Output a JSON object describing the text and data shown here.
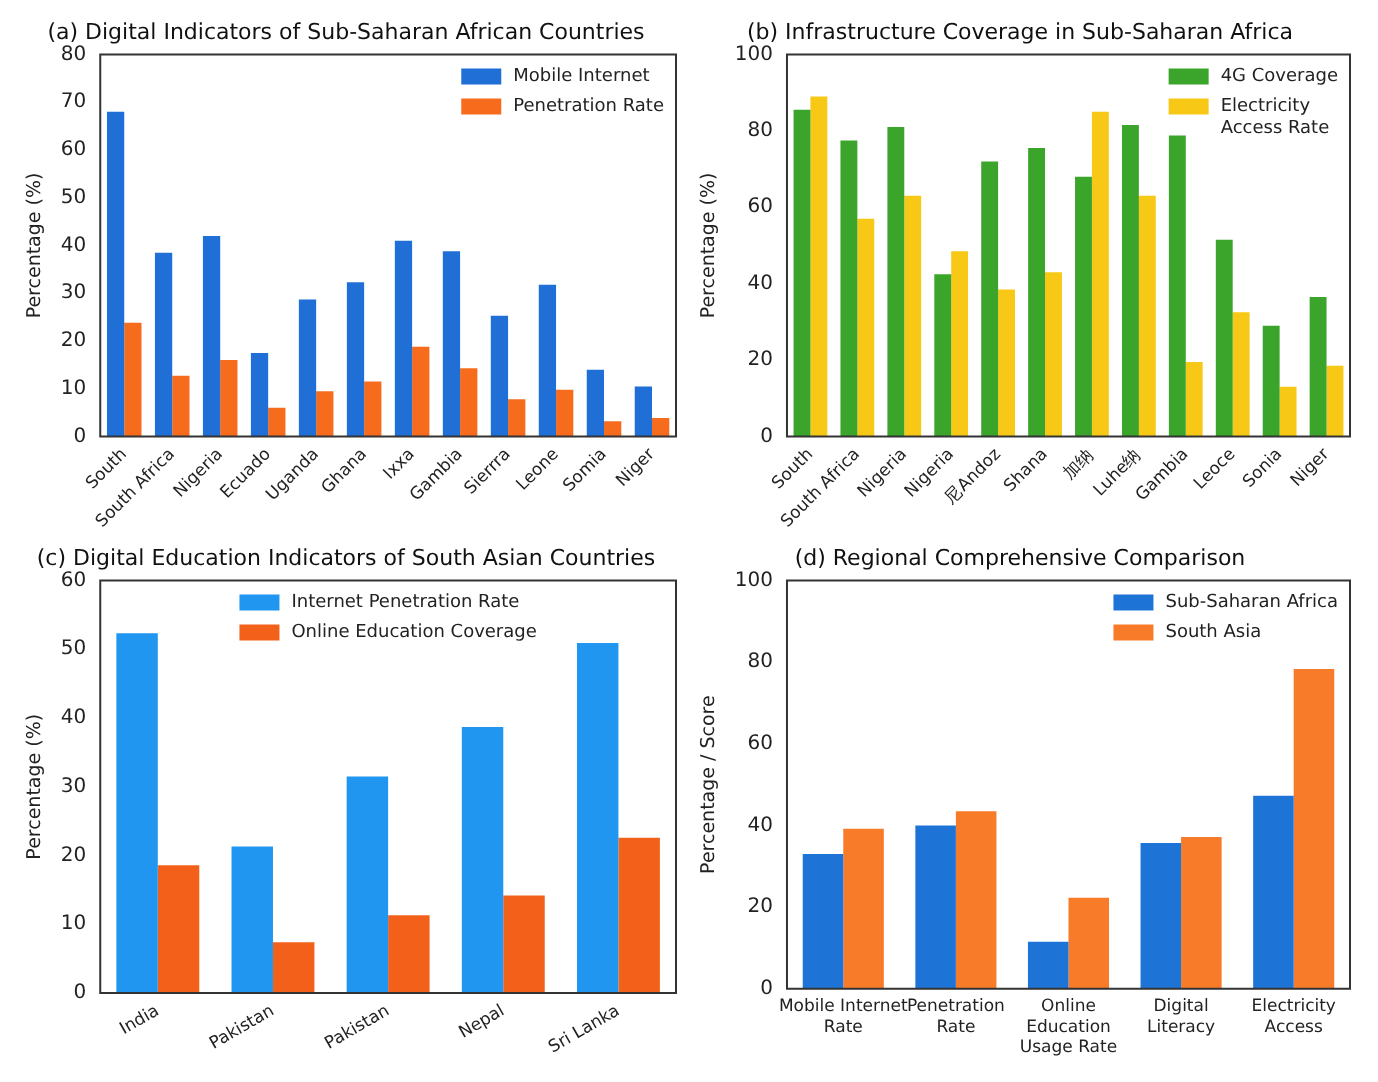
{
  "chart_data": [
    {
      "type": "bar",
      "title": "(a) Digital Indicators of Sub-Saharan African Countries",
      "ylabel": "Percentage (%)",
      "categories": [
        "South",
        "South Africa",
        "Nigeria",
        "Ecuado",
        "Uganda",
        "Ghana",
        "Ixxa",
        "Gambia",
        "Sierrra",
        "Leone",
        "Somia",
        "Niger"
      ],
      "series": [
        {
          "name": "Mobile Internet",
          "color": "#1f6fd6",
          "values": [
            68,
            38.5,
            42,
            17.5,
            28.7,
            32.3,
            41,
            38.8,
            25.3,
            31.8,
            14,
            10.5
          ]
        },
        {
          "name": "Penetration Rate",
          "color": "#f76b1c",
          "values": [
            23.8,
            12.7,
            16,
            6,
            9.5,
            11.5,
            18.8,
            14.3,
            7.8,
            9.8,
            3.2,
            3.9
          ]
        }
      ],
      "ylim": [
        0,
        80
      ],
      "yticks": [
        0,
        10,
        20,
        30,
        40,
        50,
        60,
        70,
        80
      ],
      "legend": "top right"
    },
    {
      "type": "bar",
      "title": "(b) Infrastructure Coverage in Sub-Saharan Africa",
      "ylabel": "Percentage (%)",
      "categories": [
        "South",
        "South Africa",
        "Nigeria",
        "Nigeria",
        "尼Andoz",
        "Shana",
        "加纳",
        "Luhe纳",
        "Gambia",
        "Leoce",
        "Sonia",
        "Niger"
      ],
      "series": [
        {
          "name": "4G Coverage",
          "color": "#3aa52a",
          "values": [
            85.5,
            77.5,
            81,
            42.5,
            72,
            75.5,
            68,
            81.5,
            78.8,
            51.5,
            29,
            36.5
          ]
        },
        {
          "name": "Electricity\nAccess Rate",
          "color": "#f7c815",
          "values": [
            89,
            57,
            63,
            48.5,
            38.5,
            43,
            85,
            63,
            19.5,
            32.5,
            13,
            18.5
          ]
        }
      ],
      "ylim": [
        0,
        100
      ],
      "yticks": [
        0,
        20,
        40,
        60,
        80,
        100
      ],
      "legend": "top right"
    },
    {
      "type": "bar",
      "title": "(c) Digital Education Indicators of South Asian Countries",
      "ylabel": "Percentage (%)",
      "categories": [
        "India",
        "Pakistan",
        "Pakistan",
        "Nepal",
        "Sri Lanka"
      ],
      "series": [
        {
          "name": "Internet Penetration Rate",
          "color": "#2196f0",
          "values": [
            52.3,
            21.3,
            31.5,
            38.7,
            50.9
          ]
        },
        {
          "name": "Online Education Coverage",
          "color": "#f2601a",
          "values": [
            18.6,
            7.4,
            11.3,
            14.2,
            22.6
          ]
        }
      ],
      "ylim": [
        0,
        60
      ],
      "yticks": [
        0,
        10,
        20,
        30,
        40,
        50,
        60
      ],
      "legend": "top"
    },
    {
      "type": "bar",
      "title": "(d) Regional Comprehensive Comparison",
      "ylabel": "Percentage / Score",
      "categories": [
        "Mobile Internet\nRate",
        "Penetration\nRate",
        "Online\nEducation\nUsage Rate",
        "Digital\nLiteracy",
        "Electricity\nAccess"
      ],
      "series": [
        {
          "name": "Sub-Saharan Africa",
          "color": "#1e74d6",
          "values": [
            33,
            40,
            11.5,
            35.7,
            47.3
          ]
        },
        {
          "name": "South Asia",
          "color": "#f77b28",
          "values": [
            39.2,
            43.5,
            22.3,
            37.2,
            78.3
          ]
        }
      ],
      "ylim": [
        0,
        100
      ],
      "yticks": [
        0,
        20,
        40,
        60,
        80,
        100
      ],
      "legend": "top right"
    }
  ]
}
